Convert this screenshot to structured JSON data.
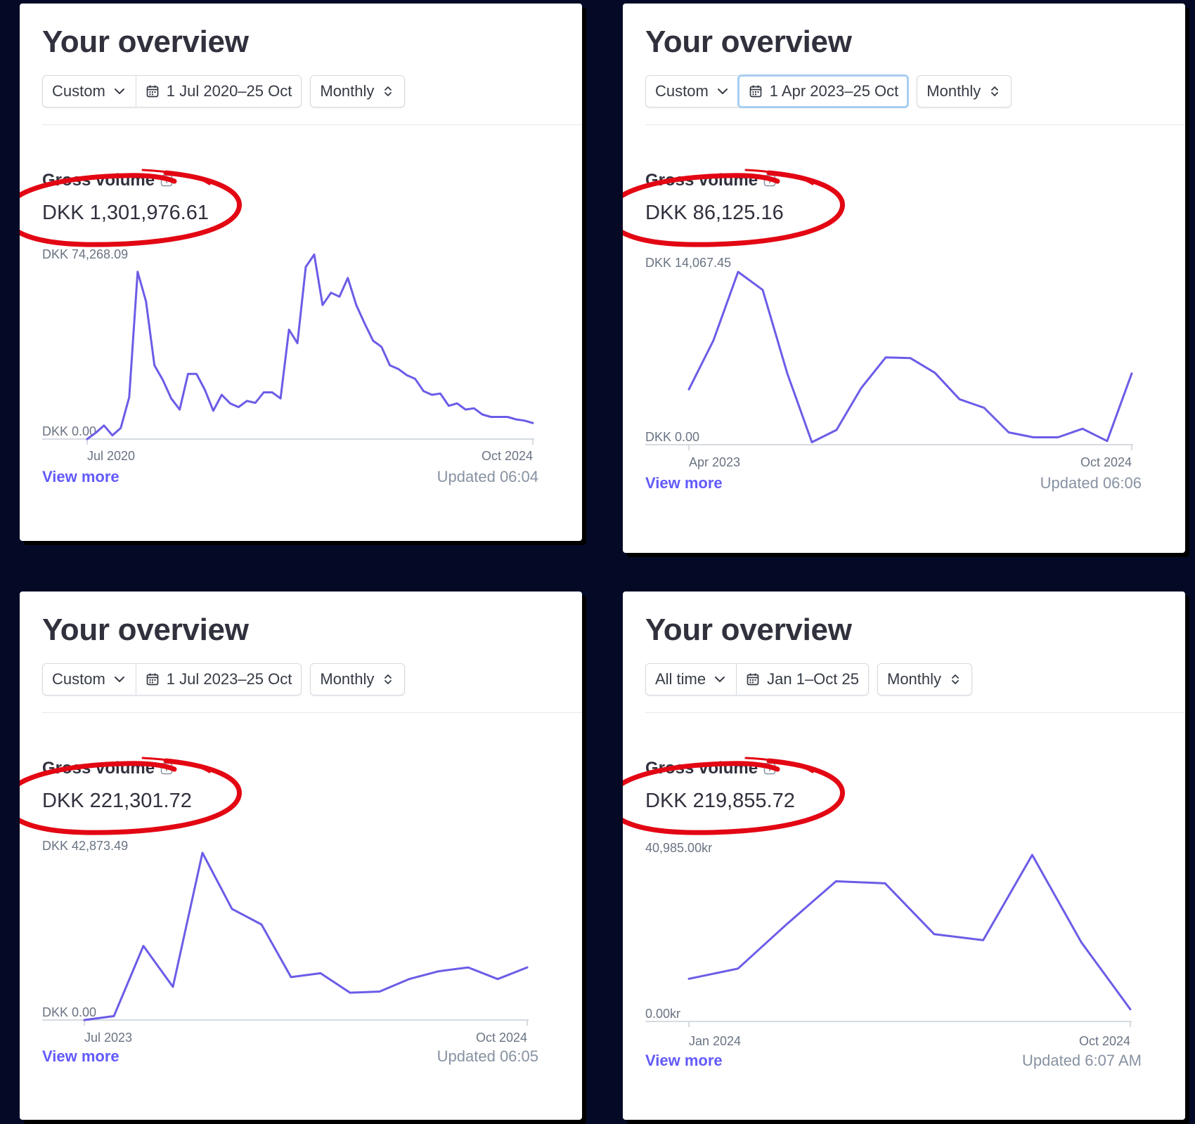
{
  "colors": {
    "background": "#040a26",
    "line": "#6b5ce7",
    "link": "#625afa",
    "annotation": "#e30613"
  },
  "panels": [
    {
      "title": "Your overview",
      "range_select": "Custom",
      "date_range": "1 Jul 2020–25 Oct",
      "interval": "Monthly",
      "date_focused": false,
      "metric_label": "Gross volume",
      "metric_value": "DKK 1,301,976.61",
      "view_more": "View more",
      "updated": "Updated 06:04",
      "chart_data": {
        "type": "line",
        "y_max_label": "DKK 74,268.09",
        "y_min_label": "DKK 0.00",
        "x_start_label": "Jul 2020",
        "x_end_label": "Oct 2024",
        "ylim": [
          0,
          74268.09
        ],
        "values": [
          0,
          2500,
          5500,
          1500,
          4500,
          17000,
          68000,
          56000,
          30000,
          24000,
          16500,
          12000,
          26500,
          26500,
          20000,
          11500,
          18000,
          14500,
          13000,
          15500,
          14700,
          19000,
          19000,
          16500,
          44500,
          39000,
          70000,
          75000,
          54500,
          59500,
          57900,
          65500,
          54500,
          47000,
          40000,
          37500,
          30000,
          28500,
          26000,
          24500,
          19500,
          18000,
          18500,
          13500,
          14500,
          12000,
          12500,
          10000,
          9000,
          9000,
          9000,
          8000,
          7500,
          6500
        ]
      }
    },
    {
      "title": "Your overview",
      "range_select": "Custom",
      "date_range": "1 Apr 2023–25 Oct",
      "interval": "Monthly",
      "date_focused": true,
      "metric_label": "Gross volume",
      "metric_value": "DKK 86,125.16",
      "view_more": "View more",
      "updated": "Updated 06:06",
      "chart_data": {
        "type": "line",
        "y_max_label": "DKK 14,067.45",
        "y_min_label": "DKK 0.00",
        "x_start_label": "Apr 2023",
        "x_end_label": "Oct 2024",
        "ylim": [
          0,
          14067.45
        ],
        "values": [
          4500,
          8500,
          14067,
          12600,
          5800,
          200,
          1200,
          4600,
          7100,
          7050,
          5850,
          3700,
          3000,
          1000,
          600,
          600,
          1300,
          300,
          5800
        ]
      }
    },
    {
      "title": "Your overview",
      "range_select": "Custom",
      "date_range": "1 Jul 2023–25 Oct",
      "interval": "Monthly",
      "date_focused": false,
      "metric_label": "Gross volume",
      "metric_value": "DKK 221,301.72",
      "view_more": "View more",
      "updated": "Updated 06:05",
      "chart_data": {
        "type": "line",
        "y_max_label": "DKK 42,873.49",
        "y_min_label": "DKK 0.00",
        "x_start_label": "Jul 2023",
        "x_end_label": "Oct 2024",
        "ylim": [
          0,
          42873.49
        ],
        "values": [
          0,
          1000,
          19000,
          8500,
          42873,
          28500,
          24500,
          11000,
          12000,
          7000,
          7300,
          10500,
          12500,
          13500,
          10500,
          13500
        ]
      }
    },
    {
      "title": "Your overview",
      "range_select": "All time",
      "date_range": "Jan 1–Oct 25",
      "interval": "Monthly",
      "date_focused": false,
      "metric_label": "Gross volume",
      "metric_value": "DKK 219,855.72",
      "view_more": "View more",
      "updated": "Updated 6:07 AM",
      "chart_data": {
        "type": "line",
        "y_max_label": "40,985.00kr",
        "y_min_label": "0.00kr",
        "x_start_label": "Jan 2024",
        "x_end_label": "Oct 2024",
        "ylim": [
          0,
          40985
        ],
        "values": [
          10500,
          13000,
          24000,
          34500,
          34000,
          21500,
          20000,
          40985,
          19500,
          3000
        ]
      }
    }
  ]
}
